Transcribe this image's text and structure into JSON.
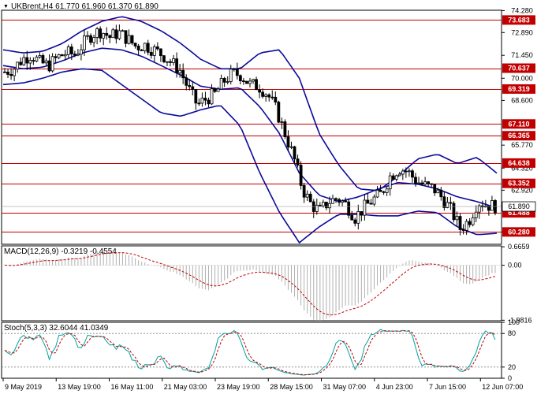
{
  "colors": {
    "background": "#ffffff",
    "frame": "#000000",
    "candle": "#000000",
    "bollinger": "#0a0a9a",
    "level_line": "#c00000",
    "level_badge": "#c00000",
    "macd_hist": "#b0b0b0",
    "macd_signal": "#c00000",
    "stoch_main": "#00a0a0",
    "stoch_signal": "#c00000",
    "stoch_levels": "#808080"
  },
  "chart_data": {
    "type": "candlestick",
    "symbol_header": "UKBrent,H4  61.770 61.960 61.370 61.890",
    "price_axis": {
      "ylim": [
        59.5,
        74.3
      ],
      "tick_labels": [
        "74.280",
        "72.890",
        "71.450",
        "70.000",
        "68.600",
        "65.770",
        "64.320",
        "62.920",
        "61.890",
        "60.280"
      ],
      "tick_values": [
        74.28,
        72.89,
        71.45,
        70.0,
        68.6,
        65.77,
        64.32,
        62.92,
        61.89,
        60.28
      ]
    },
    "levels": [
      73.683,
      70.637,
      69.319,
      67.11,
      66.365,
      64.638,
      63.352,
      61.488,
      60.28
    ],
    "level_labels": [
      "73.683",
      "70.637",
      "69.319",
      "67.110",
      "66.365",
      "64.638",
      "63.352",
      "61.488",
      "60.280"
    ],
    "current_price": 61.89,
    "current_price_label": "61.890",
    "x_labels": [
      "9 May 2019",
      "13 May 19:00",
      "16 May 11:00",
      "21 May 03:00",
      "23 May 19:00",
      "28 May 15:00",
      "31 May 07:00",
      "4 Jun 23:00",
      "7 Jun 15:00",
      "12 Jun 07:00"
    ],
    "close_path": [
      70.4,
      70.6,
      71.2,
      71.5,
      71.0,
      70.8,
      71.3,
      71.6,
      71.5,
      72.2,
      72.8,
      73.0,
      72.6,
      72.9,
      72.5,
      72.0,
      72.1,
      71.8,
      71.5,
      71.0,
      70.5,
      69.3,
      68.3,
      68.7,
      69.0,
      69.8,
      70.3,
      70.2,
      69.6,
      69.5,
      69.0,
      68.0,
      66.5,
      65.0,
      63.0,
      62.0,
      61.6,
      62.2,
      62.4,
      62.0,
      61.2,
      61.8,
      62.3,
      62.7,
      63.8,
      64.3,
      64.1,
      63.5,
      63.2,
      63.0,
      62.4,
      61.6,
      60.5,
      61.0,
      62.2,
      62.0,
      61.9
    ],
    "bollinger_upper": [
      71.8,
      71.6,
      71.7,
      72.2,
      73.0,
      73.6,
      73.9,
      73.6,
      73.0,
      72.2,
      71.2,
      70.6,
      70.6,
      71.6,
      71.8,
      70.0,
      66.5,
      64.5,
      63.0,
      62.9,
      63.8,
      64.9,
      65.2,
      64.6,
      65.0,
      64.0
    ],
    "bollinger_middle": [
      70.8,
      70.6,
      70.7,
      71.1,
      71.6,
      71.9,
      71.8,
      71.4,
      70.8,
      70.2,
      69.5,
      69.3,
      69.4,
      68.2,
      66.5,
      64.0,
      62.6,
      62.2,
      62.5,
      63.0,
      63.4,
      63.3,
      63.0,
      62.5,
      62.2,
      61.8
    ],
    "bollinger_lower": [
      69.6,
      69.7,
      70.0,
      70.4,
      70.6,
      70.5,
      69.6,
      68.7,
      67.8,
      67.6,
      68.0,
      68.3,
      67.0,
      64.0,
      61.5,
      59.6,
      60.6,
      61.4,
      61.4,
      61.3,
      61.3,
      61.6,
      61.5,
      60.6,
      60.1,
      60.2
    ],
    "macd": {
      "label": "MACD(12,26,9) -0.3219 -0.4554",
      "ylim": [
        -2.0,
        0.7
      ],
      "tick_labels": [
        "0.6659",
        "0.00",
        "-1.9816"
      ],
      "tick_values": [
        0.6659,
        0.0,
        -1.9816
      ]
    },
    "stochastic": {
      "label": "Stoch(5,3,3) 32.6044 41.0349",
      "ylim": [
        0,
        100
      ],
      "tick_labels": [
        "100",
        "80",
        "20",
        "0"
      ],
      "tick_values": [
        100,
        80,
        20,
        0
      ]
    }
  }
}
